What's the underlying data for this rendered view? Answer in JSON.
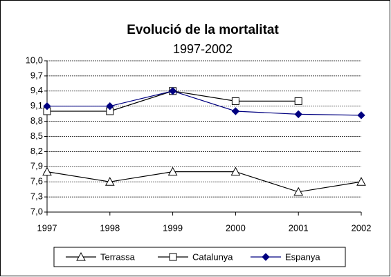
{
  "chart_data": {
    "type": "line",
    "title": "Evolució de la mortalitat",
    "subtitle": "1997-2002",
    "categories": [
      "1997",
      "1998",
      "1999",
      "2000",
      "2001",
      "2002"
    ],
    "series": [
      {
        "name": "Terrassa",
        "color": "#000000",
        "marker": "triangle",
        "values": [
          7.8,
          7.6,
          7.8,
          7.8,
          7.4,
          7.6
        ]
      },
      {
        "name": "Catalunya",
        "color": "#000000",
        "marker": "square",
        "values": [
          9.0,
          9.0,
          9.4,
          9.2,
          9.2,
          null
        ]
      },
      {
        "name": "Espanya",
        "color": "#000080",
        "marker": "diamond",
        "values": [
          9.1,
          9.1,
          9.4,
          9.0,
          8.94,
          8.92
        ]
      }
    ],
    "ylim": [
      7.0,
      10.0
    ],
    "yticks": [
      {
        "value": 7.0,
        "label": "7,0"
      },
      {
        "value": 7.3,
        "label": "7,3"
      },
      {
        "value": 7.6,
        "label": "7,6"
      },
      {
        "value": 7.9,
        "label": "7,9"
      },
      {
        "value": 8.2,
        "label": "8,2"
      },
      {
        "value": 8.5,
        "label": "8,5"
      },
      {
        "value": 8.8,
        "label": "8,8"
      },
      {
        "value": 9.1,
        "label": "9,1"
      },
      {
        "value": 9.4,
        "label": "9,4"
      },
      {
        "value": 9.7,
        "label": "9,7"
      },
      {
        "value": 10.0,
        "label": "10,0"
      }
    ],
    "grid": true,
    "legend": "bottom"
  }
}
